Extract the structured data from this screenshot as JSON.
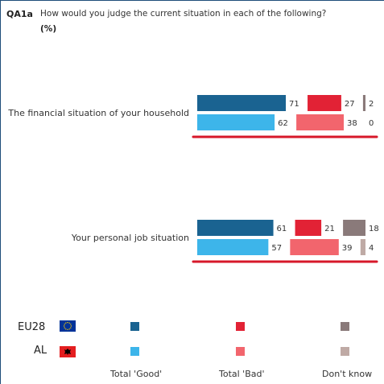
{
  "header": {
    "code": "QA1a",
    "question": "How would you judge the current situation in each of the following?",
    "unit": "(%)"
  },
  "colors": {
    "eu_good": "#1a6391",
    "eu_bad": "#e22235",
    "eu_dk": "#8a7a7a",
    "al_good": "#3db5ea",
    "al_bad": "#f2656d",
    "al_dk": "#bfaaa5",
    "highlight": "#d7182a"
  },
  "legend": {
    "rows": [
      {
        "label": "EU28",
        "flag": "eu-flag-icon"
      },
      {
        "label": "AL",
        "flag": "albania-flag-icon"
      }
    ],
    "columns": [
      "Total 'Good'",
      "Total 'Bad'",
      "Don't know"
    ]
  },
  "chart_data": {
    "type": "bar",
    "orientation": "horizontal",
    "stacked": false,
    "categories": [
      "The financial situation of your household",
      "Your personal job situation"
    ],
    "series": [
      {
        "name": "EU28 Total 'Good'",
        "values": [
          71,
          61
        ]
      },
      {
        "name": "EU28 Total 'Bad'",
        "values": [
          27,
          21
        ]
      },
      {
        "name": "EU28 Don't know",
        "values": [
          2,
          18
        ]
      },
      {
        "name": "AL Total 'Good'",
        "values": [
          62,
          57
        ]
      },
      {
        "name": "AL Total 'Bad'",
        "values": [
          38,
          39
        ]
      },
      {
        "name": "AL Don't know",
        "values": [
          0,
          4
        ]
      }
    ],
    "rows": [
      {
        "category": "The financial situation of your household",
        "EU28": {
          "good": 71,
          "bad": 27,
          "dk": 2
        },
        "AL": {
          "good": 62,
          "bad": 38,
          "dk": 0
        }
      },
      {
        "category": "Your personal job situation",
        "EU28": {
          "good": 61,
          "bad": 21,
          "dk": 18
        },
        "AL": {
          "good": 57,
          "bad": 39,
          "dk": 4
        }
      }
    ],
    "data_labels": true,
    "grid": false,
    "legend_position": "bottom"
  }
}
